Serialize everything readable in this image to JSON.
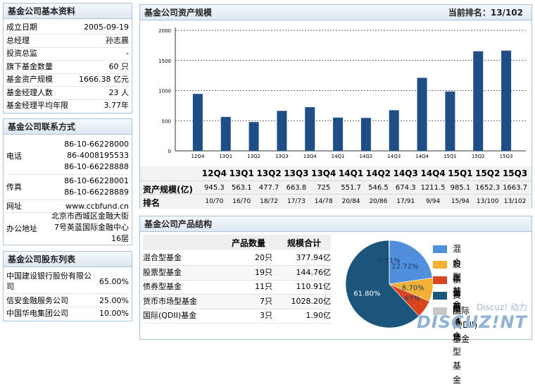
{
  "basic": {
    "title": "基金公司基本资料",
    "rows": [
      {
        "k": "成立日期",
        "v": "2005-09-19"
      },
      {
        "k": "总经理",
        "v": "孙志晨"
      },
      {
        "k": "投资总监",
        "v": "-"
      },
      {
        "k": "旗下基金数量",
        "v": "60 只"
      },
      {
        "k": "基金资产规模",
        "v": "1666.38 亿元"
      },
      {
        "k": "基金经理人数",
        "v": "23 人"
      },
      {
        "k": "基金经理平均年限",
        "v": "3.77年"
      }
    ]
  },
  "contact": {
    "title": "基金公司联系方式",
    "phone_label": "电话",
    "phones": [
      "86-10-66228000",
      "86-4008195533",
      "86-10-66228888"
    ],
    "fax_label": "传真",
    "faxes": [
      "86-10-66228001",
      "86-10-66228889"
    ],
    "web_label": "网址",
    "web": "www.ccbfund.cn",
    "addr_label": "办公地址",
    "addr": [
      "北京市西城区金融大街",
      "7号英蓝国际金融中心",
      "16层"
    ]
  },
  "holders": {
    "title": "基金公司股东列表",
    "rows": [
      {
        "k": "中国建设银行股份有限公司",
        "v": "65.00%"
      },
      {
        "k": "信安金融服务公司",
        "v": "25.00%"
      },
      {
        "k": "中国华电集团公司",
        "v": "10.00%"
      }
    ]
  },
  "scale": {
    "title": "基金公司资产规模",
    "rank_text": "当前排名：13/102",
    "row1_label": "资产规模(亿)",
    "row2_label": "排名",
    "ranks": [
      "10/70",
      "16/70",
      "18/72",
      "17/73",
      "14/78",
      "20/84",
      "20/86",
      "17/91",
      "9/94",
      "15/94",
      "13/100",
      "13/102"
    ]
  },
  "chart_data": [
    {
      "type": "bar",
      "categories": [
        "12Q4",
        "13Q1",
        "13Q2",
        "13Q3",
        "13Q4",
        "14Q1",
        "14Q2",
        "14Q3",
        "14Q4",
        "15Q1",
        "15Q2",
        "15Q3"
      ],
      "values": [
        945.3,
        563.1,
        477.7,
        663.8,
        725.0,
        551.7,
        546.5,
        674.3,
        1211.5,
        985.1,
        1652.3,
        1663.7
      ],
      "ylim": [
        0,
        2000
      ],
      "yticks": [
        0,
        500,
        1000,
        1500,
        2000
      ],
      "grid": true,
      "color": "#1f4e86"
    },
    {
      "type": "pie",
      "labels": [
        "混合型基金",
        "股票型基金",
        "债券型基金",
        "货币市场型基金",
        "国际(QDII)基金"
      ],
      "values": [
        22.72,
        8.7,
        6.67,
        61.8,
        0.11
      ],
      "value_labels": [
        "22.72%",
        "8.70%",
        "6.67%",
        "61.80%",
        "0.11%"
      ],
      "colors": [
        "#4f8fdc",
        "#f2b134",
        "#d9451f",
        "#1a567c",
        "#c8c8c8"
      ],
      "legend": "right"
    }
  ],
  "products": {
    "title": "基金公司产品结构",
    "col_count": "产品数量",
    "col_scale": "规模合计",
    "rows": [
      {
        "name": "混合型基金",
        "count": "20只",
        "scale": "377.94亿"
      },
      {
        "name": "股票型基金",
        "count": "19只",
        "scale": "144.76亿"
      },
      {
        "name": "债券型基金",
        "count": "11只",
        "scale": "110.91亿"
      },
      {
        "name": "货币市场型基金",
        "count": "7只",
        "scale": "1028.20亿"
      },
      {
        "name": "国际(QDII)基金",
        "count": "3只",
        "scale": "1.90亿"
      }
    ]
  },
  "watermark": {
    "line1": "Discuz! 动力",
    "line2": "DISCUZ!NT"
  }
}
